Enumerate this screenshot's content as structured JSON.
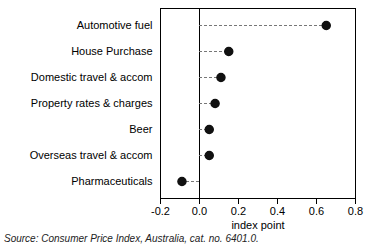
{
  "chart_data": {
    "type": "dot",
    "orientation": "horizontal",
    "categories": [
      "Automotive fuel",
      "House Purchase",
      "Domestic travel & accom",
      "Property rates & charges",
      "Beer",
      "Overseas travel & accom",
      "Pharmaceuticals"
    ],
    "values": [
      0.65,
      0.15,
      0.11,
      0.08,
      0.05,
      0.05,
      -0.09
    ],
    "color": "#111111",
    "xlabel": "index point",
    "xlim": [
      -0.2,
      0.8
    ],
    "xticks": [
      -0.2,
      {
        "value": 0,
        "label": "0.0"
      },
      0.2,
      0.4,
      0.6,
      0.8
    ],
    "grid": false,
    "caption": "Source: Consumer Price Index, Australia, cat. no. 6401.0."
  }
}
